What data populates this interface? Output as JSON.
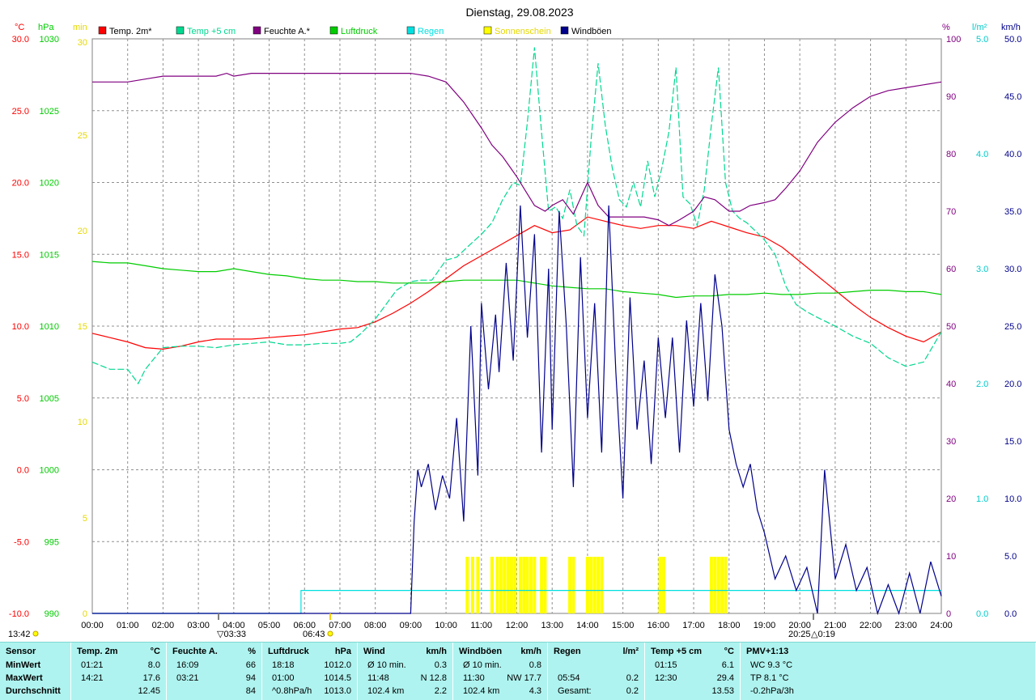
{
  "title": "Dienstag, 29.08.2023",
  "legend": [
    {
      "label": "Temp. 2m*",
      "color": "#ff0000"
    },
    {
      "label": "Temp +5 cm",
      "color": "#00d890"
    },
    {
      "label": "Feuchte A.*",
      "color": "#800080"
    },
    {
      "label": "Luftdruck",
      "color": "#00cc00"
    },
    {
      "label": "Regen",
      "color": "#00e0e0"
    },
    {
      "label": "Sonnenschein",
      "color": "#ffff00"
    },
    {
      "label": "Windböen",
      "color": "#00008b"
    }
  ],
  "axes": {
    "temp": {
      "unit": "°C",
      "color": "#ff0000",
      "ticks": [
        "30.0",
        "25.0",
        "20.0",
        "15.0",
        "10.0",
        "5.0",
        "0.0",
        "-5.0",
        "-10.0"
      ],
      "range": [
        -10,
        30
      ]
    },
    "pressure": {
      "unit": "hPa",
      "color": "#00cc00",
      "ticks": [
        "1030",
        "1025",
        "1020",
        "1015",
        "1010",
        "1005",
        "1000",
        "995",
        "990"
      ],
      "range": [
        990,
        1030
      ]
    },
    "sun": {
      "unit": "min",
      "color": "#ffff00",
      "ticks": [
        "30",
        "25",
        "20",
        "15",
        "10",
        "5",
        "0"
      ],
      "range": [
        0,
        30
      ]
    },
    "humidity": {
      "unit": "%",
      "color": "#800080",
      "ticks": [
        "100",
        "90",
        "80",
        "70",
        "60",
        "50",
        "40",
        "30",
        "20",
        "10",
        "0"
      ],
      "range": [
        0,
        100
      ]
    },
    "rain": {
      "unit": "l/m²",
      "color": "#00e0e0",
      "ticks": [
        "5.0",
        "4.0",
        "3.0",
        "2.0",
        "1.0",
        "0.0"
      ],
      "range": [
        0,
        5
      ]
    },
    "wind": {
      "unit": "km/h",
      "color": "#00008b",
      "ticks": [
        "50.0",
        "45.0",
        "40.0",
        "35.0",
        "30.0",
        "25.0",
        "20.0",
        "15.0",
        "10.0",
        "5.0",
        "0.0"
      ],
      "range": [
        0,
        50
      ]
    }
  },
  "x_ticks": [
    "00:00",
    "01:00",
    "02:00",
    "03:00",
    "04:00",
    "05:00",
    "06:00",
    "07:00",
    "08:00",
    "09:00",
    "10:00",
    "11:00",
    "12:00",
    "13:00",
    "14:00",
    "15:00",
    "16:00",
    "17:00",
    "18:00",
    "19:00",
    "20:00",
    "21:00",
    "22:00",
    "23:00",
    "24:00"
  ],
  "markers": {
    "sunrise_time": "06:43",
    "sunset_time": "20:25",
    "moonset_time": "03:33",
    "moonrise_time": "0:19",
    "clock": "13:42"
  },
  "chart_data": {
    "type": "line",
    "x_unit": "hours",
    "series": [
      {
        "name": "Temp. 2m*",
        "axis": "temp",
        "color": "#ff0000",
        "x": [
          0,
          0.5,
          1,
          1.5,
          2,
          2.5,
          3,
          3.5,
          4,
          4.5,
          5,
          5.5,
          6,
          6.5,
          7,
          7.5,
          8,
          8.5,
          9,
          9.5,
          10,
          10.5,
          11,
          11.5,
          12,
          12.5,
          13,
          13.5,
          14,
          14.5,
          15,
          15.5,
          16,
          16.5,
          17,
          17.5,
          18,
          18.5,
          19,
          19.5,
          20,
          20.5,
          21,
          21.5,
          22,
          22.5,
          23,
          23.5,
          24
        ],
        "y": [
          9.5,
          9.2,
          8.9,
          8.5,
          8.4,
          8.6,
          8.9,
          9.1,
          9.1,
          9.1,
          9.2,
          9.3,
          9.4,
          9.6,
          9.8,
          9.9,
          10.3,
          10.9,
          11.6,
          12.4,
          13.3,
          14.2,
          14.9,
          15.6,
          16.3,
          17.0,
          16.5,
          16.7,
          17.6,
          17.3,
          17.0,
          16.8,
          17.0,
          17.0,
          16.8,
          17.3,
          16.9,
          16.5,
          16.2,
          15.5,
          14.5,
          13.5,
          12.5,
          11.5,
          10.6,
          9.9,
          9.3,
          8.9,
          9.6
        ]
      },
      {
        "name": "Temp +5 cm",
        "axis": "temp",
        "color": "#00d890",
        "dashed": true,
        "x": [
          0,
          0.5,
          1,
          1.3,
          1.5,
          2,
          2.5,
          3,
          3.5,
          4,
          4.5,
          5,
          5.5,
          6,
          6.5,
          7,
          7.3,
          7.6,
          8,
          8.3,
          8.6,
          9,
          9.3,
          9.6,
          10,
          10.3,
          10.6,
          11,
          11.3,
          11.6,
          11.9,
          12.1,
          12.3,
          12.5,
          12.7,
          12.9,
          13.1,
          13.3,
          13.5,
          13.7,
          13.9,
          14.1,
          14.3,
          14.5,
          14.7,
          14.9,
          15.1,
          15.3,
          15.5,
          15.7,
          15.9,
          16.1,
          16.3,
          16.5,
          16.7,
          16.9,
          17.1,
          17.3,
          17.5,
          17.7,
          17.9,
          18.1,
          18.3,
          18.5,
          18.8,
          19,
          19.3,
          19.6,
          19.9,
          20.2,
          20.5,
          21,
          21.5,
          22,
          22.5,
          23,
          23.5,
          24
        ],
        "y": [
          7.5,
          7.0,
          7.0,
          6.0,
          7.0,
          8.5,
          8.6,
          8.6,
          8.5,
          8.7,
          8.8,
          8.9,
          8.7,
          8.7,
          8.8,
          8.8,
          8.9,
          9.5,
          10.5,
          11.5,
          12.5,
          13.1,
          13.2,
          13.2,
          14.6,
          14.8,
          15.5,
          16.4,
          17.2,
          18.8,
          20.0,
          19.8,
          24.2,
          29.4,
          23.5,
          18.0,
          18.3,
          17.5,
          19.5,
          17.0,
          16.3,
          23.0,
          28.3,
          24.0,
          21.0,
          18.8,
          18.3,
          20.0,
          18.3,
          21.5,
          19.0,
          21.0,
          23.5,
          28.0,
          19.0,
          18.5,
          17.0,
          19.5,
          24.0,
          28.0,
          20.0,
          18.0,
          17.5,
          17.2,
          16.5,
          16.0,
          15.0,
          12.8,
          11.5,
          11.0,
          10.6,
          10.0,
          9.3,
          8.8,
          7.8,
          7.2,
          7.5,
          9.6
        ]
      },
      {
        "name": "Feuchte A.*",
        "axis": "humidity",
        "color": "#800080",
        "x": [
          0,
          0.5,
          1,
          1.5,
          2,
          2.5,
          3,
          3.5,
          3.8,
          4,
          4.5,
          5,
          5.5,
          6,
          6.5,
          7,
          7.5,
          8,
          8.5,
          9,
          9.5,
          10,
          10.5,
          11,
          11.3,
          11.6,
          12,
          12.3,
          12.5,
          12.8,
          13,
          13.3,
          13.6,
          14,
          14.3,
          14.6,
          15,
          15.3,
          15.6,
          16,
          16.3,
          16.6,
          17,
          17.3,
          17.6,
          18,
          18.3,
          18.6,
          19,
          19.3,
          19.6,
          20,
          20.5,
          21,
          21.5,
          22,
          22.5,
          23,
          23.5,
          24
        ],
        "y": [
          92.5,
          92.5,
          92.5,
          93,
          93.5,
          93.5,
          93.5,
          93.5,
          94,
          93.5,
          94,
          94,
          94,
          94,
          94,
          94,
          94,
          94,
          94,
          94,
          93.5,
          92.5,
          89,
          84.5,
          81.5,
          79.5,
          76,
          73,
          71,
          70,
          71,
          72,
          69.5,
          75,
          71,
          69,
          69,
          69,
          69,
          68.5,
          67.5,
          68.5,
          70,
          72.5,
          72,
          70,
          70,
          71,
          71.5,
          72,
          74,
          77,
          82,
          85.5,
          88,
          90,
          91,
          91.5,
          92,
          92.5
        ]
      },
      {
        "name": "Luftdruck",
        "axis": "pressure",
        "color": "#00cc00",
        "x": [
          0,
          0.5,
          1,
          1.5,
          2,
          2.5,
          3,
          3.5,
          4,
          4.5,
          5,
          5.5,
          6,
          6.5,
          7,
          7.5,
          8,
          8.5,
          9,
          9.5,
          10,
          10.5,
          11,
          11.5,
          12,
          12.5,
          13,
          13.5,
          14,
          14.5,
          15,
          15.5,
          16,
          16.5,
          17,
          17.5,
          18,
          18.5,
          19,
          19.5,
          20,
          20.5,
          21,
          21.5,
          22,
          22.5,
          23,
          23.5,
          24
        ],
        "y": [
          1014.5,
          1014.4,
          1014.4,
          1014.2,
          1014.0,
          1013.9,
          1013.8,
          1013.8,
          1014.0,
          1013.8,
          1013.6,
          1013.5,
          1013.3,
          1013.2,
          1013.2,
          1013.1,
          1013.1,
          1013.0,
          1013.0,
          1013.0,
          1013.1,
          1013.2,
          1013.2,
          1013.2,
          1013.2,
          1013.0,
          1012.8,
          1012.7,
          1012.6,
          1012.6,
          1012.4,
          1012.3,
          1012.2,
          1012.0,
          1012.1,
          1012.1,
          1012.2,
          1012.2,
          1012.3,
          1012.2,
          1012.2,
          1012.3,
          1012.3,
          1012.4,
          1012.5,
          1012.5,
          1012.4,
          1012.4,
          1012.2
        ]
      },
      {
        "name": "Regen",
        "axis": "rain",
        "color": "#00e0e0",
        "step": true,
        "x": [
          0,
          5.9,
          5.9,
          24
        ],
        "y": [
          0,
          0,
          0.2,
          0.2
        ]
      },
      {
        "name": "Windböen",
        "axis": "wind",
        "color": "#00008b",
        "x": [
          0,
          9.0,
          9.1,
          9.2,
          9.3,
          9.5,
          9.7,
          9.9,
          10.1,
          10.3,
          10.5,
          10.7,
          10.9,
          11.0,
          11.2,
          11.4,
          11.5,
          11.7,
          11.9,
          12.1,
          12.3,
          12.5,
          12.7,
          12.9,
          13.0,
          13.2,
          13.4,
          13.6,
          13.8,
          14.0,
          14.2,
          14.4,
          14.6,
          14.8,
          15.0,
          15.2,
          15.4,
          15.6,
          15.8,
          16.0,
          16.2,
          16.4,
          16.6,
          16.8,
          17.0,
          17.2,
          17.4,
          17.6,
          17.8,
          18.0,
          18.2,
          18.4,
          18.6,
          18.8,
          19.0,
          19.3,
          19.6,
          19.9,
          20.2,
          20.5,
          20.7,
          21.0,
          21.3,
          21.6,
          21.9,
          22.2,
          22.5,
          22.8,
          23.1,
          23.4,
          23.7,
          24
        ],
        "y": [
          0,
          0,
          8.0,
          12.5,
          11.0,
          13.0,
          9.0,
          12.0,
          10.0,
          17.0,
          8.0,
          25.0,
          12.0,
          27.0,
          19.5,
          26.0,
          21.0,
          30.5,
          22.0,
          35.5,
          24.0,
          33.0,
          14.0,
          30.0,
          16.0,
          35.0,
          25.0,
          11.0,
          31.0,
          17.0,
          27.0,
          14.0,
          35.5,
          21.0,
          10.0,
          27.5,
          16.0,
          22.0,
          13.0,
          24.0,
          17.0,
          24.0,
          14.0,
          25.5,
          18.0,
          27.0,
          18.5,
          29.5,
          25.0,
          16.0,
          13.0,
          11.0,
          13.0,
          9.0,
          7.0,
          3.0,
          5.0,
          2.0,
          4.0,
          0,
          12.5,
          3.0,
          6.0,
          2.0,
          4.0,
          0,
          2.5,
          0,
          3.5,
          0,
          4.5,
          1.5
        ]
      },
      {
        "name": "Sonnenschein",
        "axis": "sun",
        "color": "#ffff00",
        "type": "bar",
        "x": [
          10.6,
          10.75,
          10.9,
          11.3,
          11.45,
          11.55,
          11.65,
          11.75,
          11.85,
          11.95,
          12.1,
          12.2,
          12.3,
          12.4,
          12.5,
          12.7,
          12.8,
          13.5,
          13.6,
          14.0,
          14.1,
          14.2,
          14.3,
          14.4,
          16.05,
          16.15,
          17.5,
          17.6,
          17.7,
          17.8,
          17.9
        ],
        "y": [
          3,
          3,
          3,
          3,
          3,
          3,
          3,
          3,
          3,
          3,
          3,
          3,
          3,
          3,
          3,
          3,
          3,
          3,
          3,
          3,
          3,
          3,
          3,
          3,
          3,
          3,
          3,
          3,
          3,
          3,
          3
        ]
      }
    ]
  },
  "stats": {
    "columns": [
      {
        "header": "Sensor",
        "unit": "",
        "rows": [
          [
            "MinWert",
            "",
            ""
          ],
          [
            "MaxWert",
            "",
            ""
          ],
          [
            "Durchschnitt",
            "",
            ""
          ]
        ]
      },
      {
        "header": "Temp. 2m",
        "unit": "°C",
        "rows": [
          [
            "01:21",
            "",
            "8.0"
          ],
          [
            "14:21",
            "",
            "17.6"
          ],
          [
            "",
            "",
            "12.45"
          ]
        ]
      },
      {
        "header": "Feuchte A.",
        "unit": "%",
        "rows": [
          [
            "16:09",
            "",
            "66"
          ],
          [
            "03:21",
            "",
            "94"
          ],
          [
            "",
            "",
            "84"
          ]
        ]
      },
      {
        "header": "Luftdruck",
        "unit": "hPa",
        "rows": [
          [
            "18:18",
            "",
            "1012.0"
          ],
          [
            "01:00",
            "",
            "1014.5"
          ],
          [
            "^0.8hPa/h",
            "",
            "1013.0"
          ]
        ]
      },
      {
        "header": "Wind",
        "unit": "km/h",
        "rows": [
          [
            "Ø 10 min.",
            "",
            "0.3"
          ],
          [
            "11:48",
            "N 12.8",
            ""
          ],
          [
            "102.4 km",
            "",
            "2.2"
          ]
        ]
      },
      {
        "header": "Windböen",
        "unit": "km/h",
        "rows": [
          [
            "Ø 10 min.",
            "",
            "0.8"
          ],
          [
            "11:30",
            "NW 17.7",
            ""
          ],
          [
            "102.4 km",
            "",
            "4.3"
          ]
        ]
      },
      {
        "header": "Regen",
        "unit": "l/m²",
        "rows": [
          [
            "",
            "",
            ""
          ],
          [
            "05:54",
            "",
            "0.2"
          ],
          [
            "Gesamt:",
            "",
            "0.2"
          ]
        ]
      },
      {
        "header": "Temp +5 cm",
        "unit": "°C",
        "rows": [
          [
            "01:15",
            "",
            "6.1"
          ],
          [
            "12:30",
            "",
            "29.4"
          ],
          [
            "",
            "",
            "13.53"
          ]
        ]
      },
      {
        "header": "PMV+1:13",
        "unit": "",
        "rows": [
          [
            "WC 9.3 °C",
            "",
            ""
          ],
          [
            "TP 8.1 °C",
            "",
            ""
          ],
          [
            "-0.2hPa/3h",
            "",
            ""
          ]
        ]
      }
    ]
  }
}
